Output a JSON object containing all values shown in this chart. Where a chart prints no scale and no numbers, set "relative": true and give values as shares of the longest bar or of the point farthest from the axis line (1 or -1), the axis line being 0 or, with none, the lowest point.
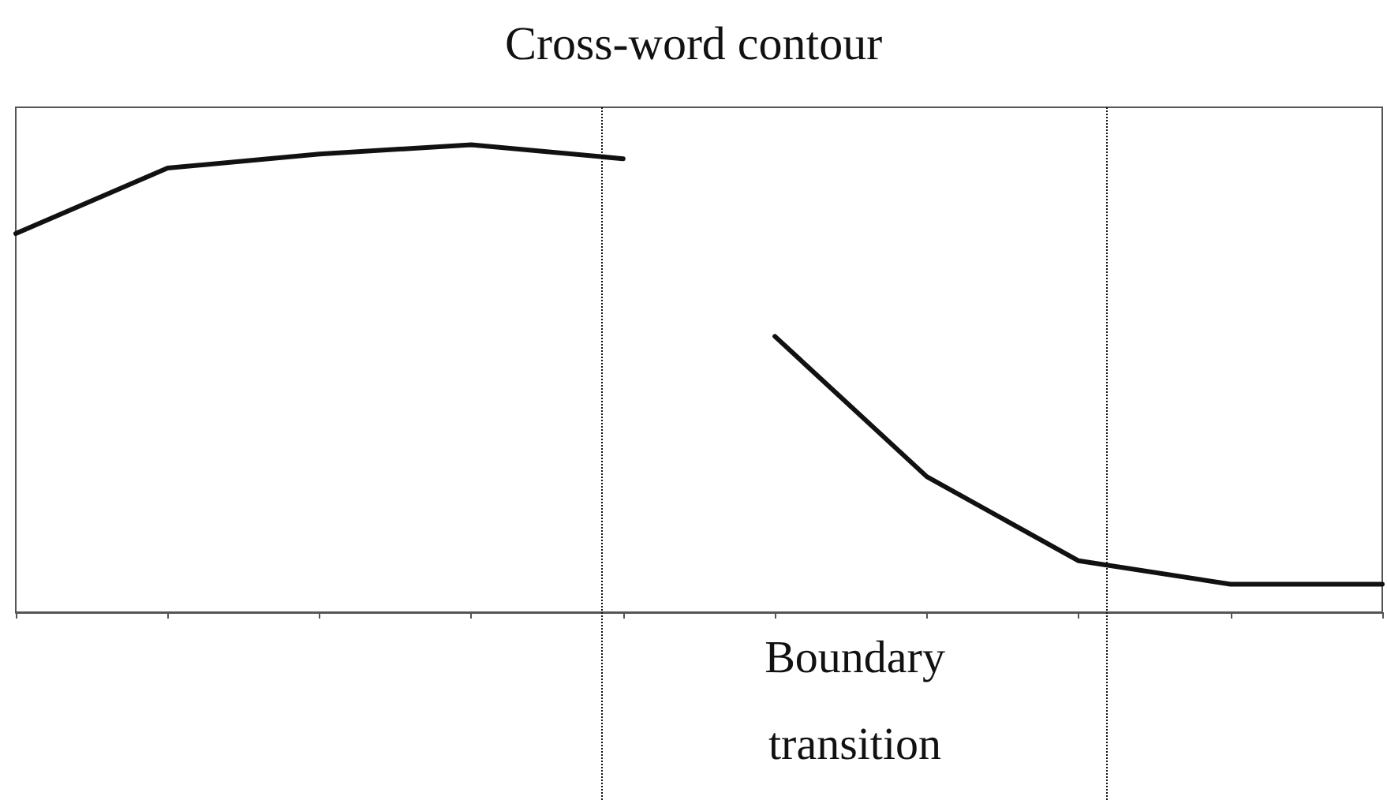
{
  "chart_data": {
    "type": "line",
    "title": "Cross-word contour",
    "relative": true,
    "categories": [
      null,
      null,
      null,
      null,
      null,
      null,
      null,
      null,
      null,
      null
    ],
    "marker": "none",
    "line_style": "solid",
    "grid": false,
    "series": [
      {
        "color": "#111111",
        "values": [
          0.81,
          0.95,
          0.98,
          1,
          0.97,
          null,
          null,
          null,
          null,
          null
        ]
      },
      {
        "color": "#111111",
        "values": [
          null,
          null,
          null,
          null,
          null,
          0.59,
          0.29,
          0.11,
          0.06,
          0.06
        ]
      }
    ],
    "annotations": [
      "Boundary transition"
    ]
  }
}
